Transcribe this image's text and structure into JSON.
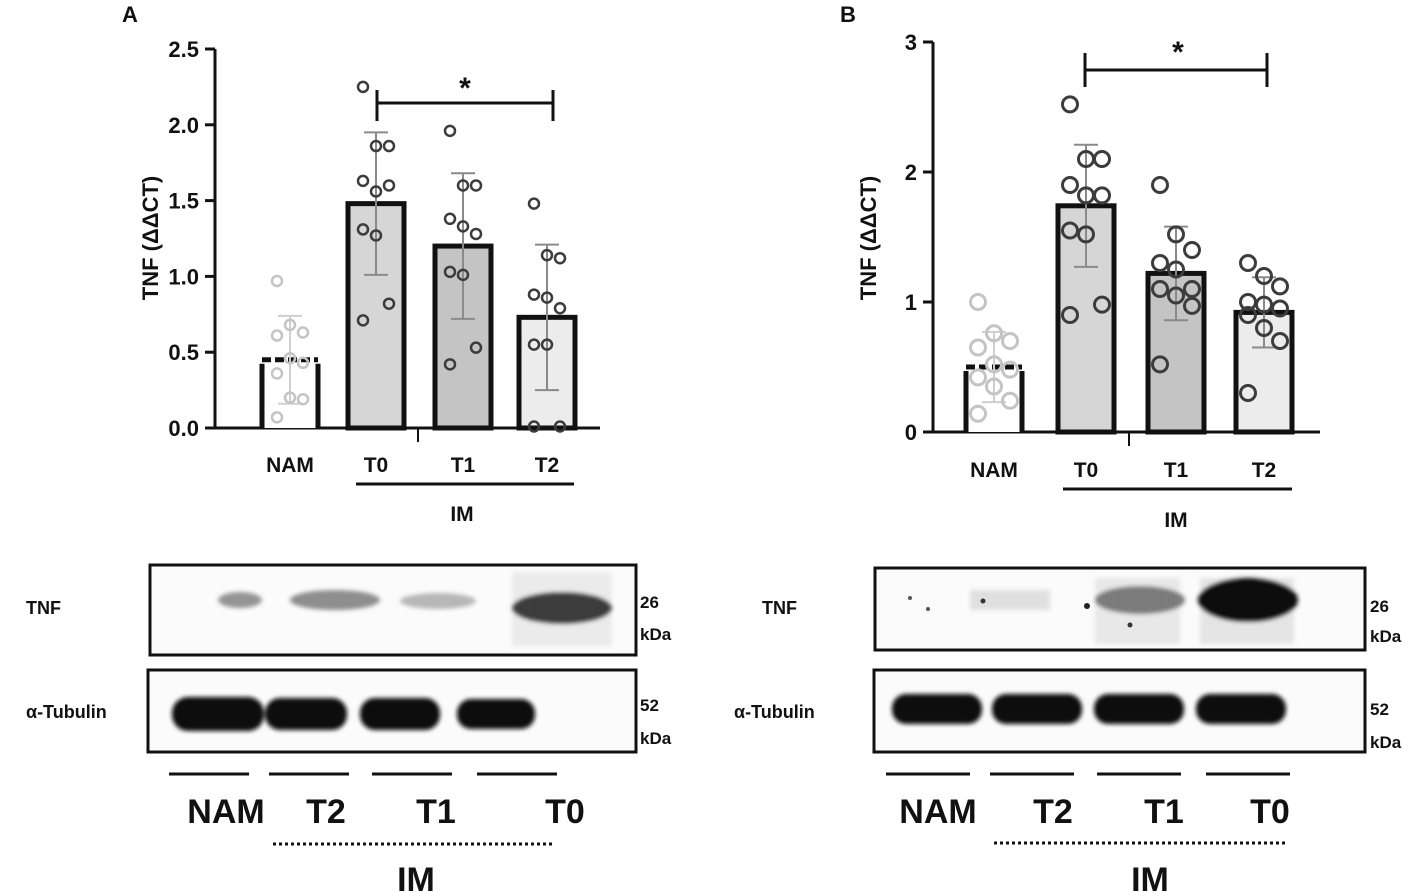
{
  "panels": {
    "A": {
      "label": "A",
      "ylabel": "TNF (ΔΔCT)",
      "yticks": [
        "0.0",
        "0.5",
        "1.0",
        "1.5",
        "2.0",
        "2.5"
      ],
      "categories": [
        "NAM",
        "T0",
        "T1",
        "T2"
      ],
      "group_label": "IM",
      "significance": "*",
      "blot": {
        "rows": [
          "TNF",
          "α-Tubulin"
        ],
        "kda": [
          "26",
          "kDa",
          "52",
          "kDa"
        ],
        "lanes": [
          "NAM",
          "T2",
          "T1",
          "T0"
        ],
        "group_label": "IM"
      }
    },
    "B": {
      "label": "B",
      "ylabel": "TNF (ΔΔCT)",
      "yticks": [
        "0",
        "1",
        "2",
        "3"
      ],
      "categories": [
        "NAM",
        "T0",
        "T1",
        "T2"
      ],
      "group_label": "IM",
      "significance": "*",
      "blot": {
        "rows": [
          "TNF",
          "α-Tubulin"
        ],
        "kda": [
          "26",
          "kDa",
          "52",
          "kDa"
        ],
        "lanes": [
          "NAM",
          "T2",
          "T1",
          "T0"
        ],
        "group_label": "IM"
      }
    }
  },
  "chart_data": [
    {
      "type": "bar",
      "title": "A",
      "xlabel": "",
      "ylabel": "TNF (ΔΔCT)",
      "ylim": [
        0,
        2.5
      ],
      "categories": [
        "NAM",
        "T0",
        "T1",
        "T2"
      ],
      "values": [
        0.45,
        1.48,
        1.2,
        0.73
      ],
      "error_sd": [
        0.29,
        0.47,
        0.48,
        0.48
      ],
      "points": [
        [
          0.97,
          0.68,
          0.63,
          0.61,
          0.46,
          0.43,
          0.36,
          0.2,
          0.19,
          0.07
        ],
        [
          2.25,
          1.86,
          1.86,
          1.63,
          1.56,
          1.6,
          1.31,
          1.27,
          0.82,
          0.71
        ],
        [
          1.96,
          1.6,
          1.6,
          1.38,
          1.33,
          1.28,
          1.03,
          1.01,
          0.53,
          0.42
        ],
        [
          1.48,
          1.14,
          1.12,
          0.88,
          0.86,
          0.79,
          0.55,
          0.55,
          0.01,
          0.01
        ]
      ],
      "fill_colors": [
        "#ffffff",
        "#d6d6d6",
        "#c4c4c4",
        "#ececec"
      ],
      "significance": {
        "from": "T0",
        "to": "T2",
        "label": "*"
      },
      "group": {
        "label": "IM",
        "members": [
          "T0",
          "T1",
          "T2"
        ]
      }
    },
    {
      "type": "bar",
      "title": "B",
      "xlabel": "",
      "ylabel": "TNF (ΔΔCT)",
      "ylim": [
        0,
        3
      ],
      "categories": [
        "NAM",
        "T0",
        "T1",
        "T2"
      ],
      "values": [
        0.5,
        1.74,
        1.22,
        0.92
      ],
      "error_sd": [
        0.27,
        0.47,
        0.36,
        0.27
      ],
      "points": [
        [
          1.0,
          0.76,
          0.7,
          0.65,
          0.52,
          0.48,
          0.42,
          0.35,
          0.24,
          0.14
        ],
        [
          2.52,
          2.1,
          2.1,
          1.9,
          1.82,
          1.82,
          1.55,
          1.52,
          0.98,
          0.9
        ],
        [
          1.9,
          1.52,
          1.4,
          1.3,
          1.25,
          1.1,
          1.1,
          1.05,
          0.97,
          0.52
        ],
        [
          1.3,
          1.2,
          1.12,
          1.0,
          0.98,
          0.95,
          0.9,
          0.8,
          0.7,
          0.3
        ]
      ],
      "fill_colors": [
        "#ffffff",
        "#d6d6d6",
        "#c4c4c4",
        "#ececec"
      ],
      "significance": {
        "from": "T0",
        "to": "T2",
        "label": "*"
      },
      "group": {
        "label": "IM",
        "members": [
          "T0",
          "T1",
          "T2"
        ]
      }
    }
  ]
}
